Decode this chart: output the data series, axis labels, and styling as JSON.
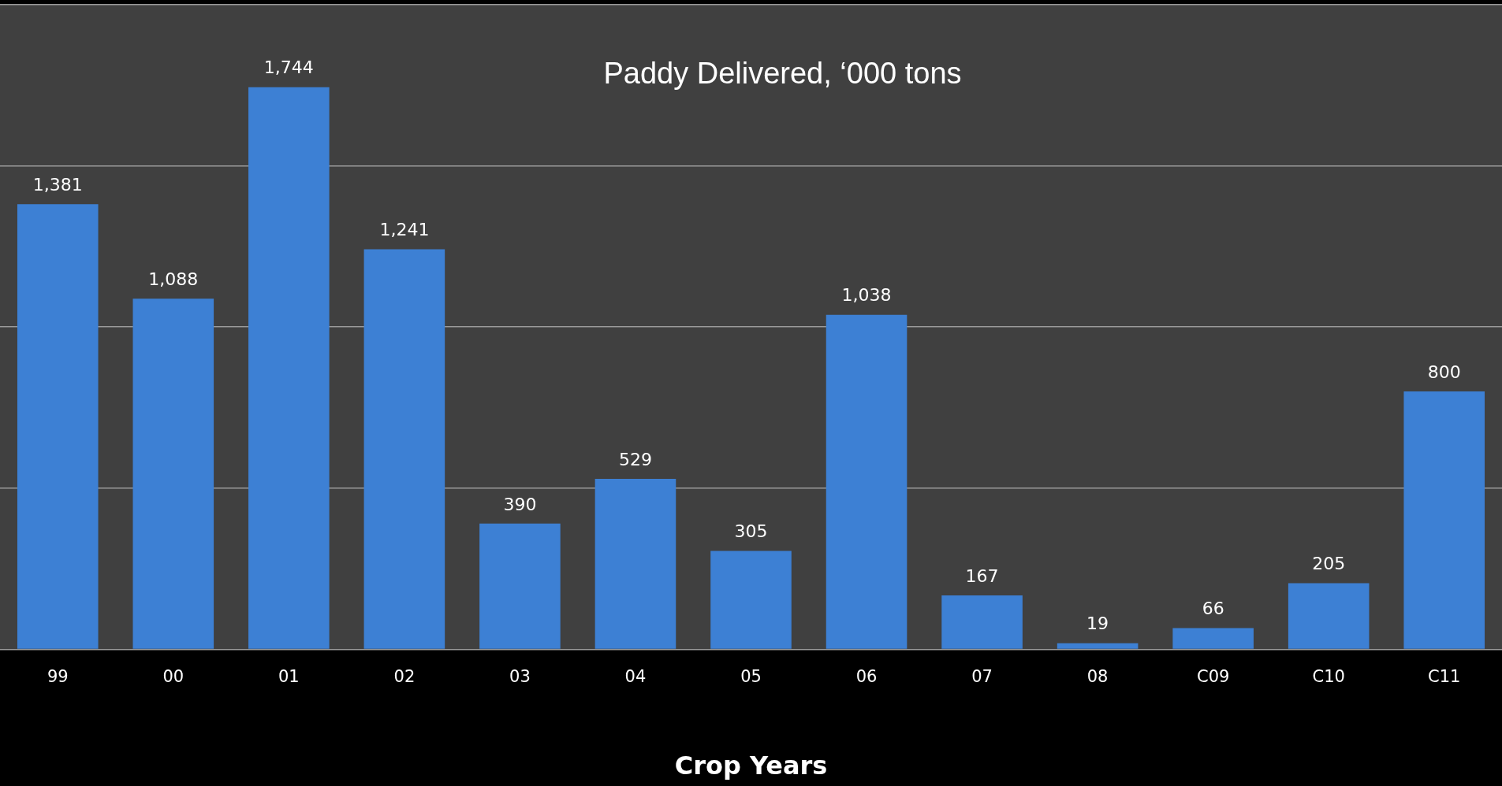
{
  "chart_data": {
    "type": "bar",
    "title": "Paddy Delivered, ‘000 tons",
    "xlabel": "Crop Years",
    "categories": [
      "99",
      "00",
      "01",
      "02",
      "03",
      "04",
      "05",
      "06",
      "07",
      "08",
      "C09",
      "C10",
      "C11"
    ],
    "values": [
      1381,
      1088,
      1744,
      1241,
      390,
      529,
      305,
      1038,
      167,
      19,
      66,
      205,
      800
    ],
    "value_labels": [
      "1,381",
      "1,088",
      "1,744",
      "1,241",
      "390",
      "529",
      "305",
      "1,038",
      "167",
      "19",
      "66",
      "205",
      "800"
    ],
    "color": "#3d80d4",
    "grid": "y",
    "tick_labels": "x"
  }
}
